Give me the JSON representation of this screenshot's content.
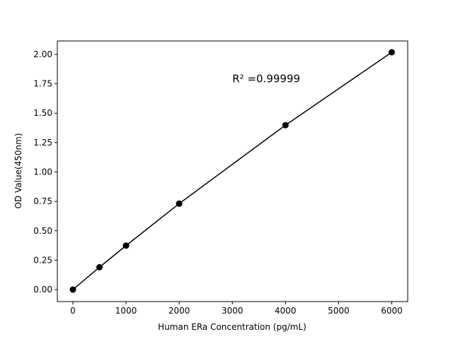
{
  "chart_data": {
    "type": "line",
    "title": "",
    "xlabel": "Human ERa Concentration (pg/mL)",
    "ylabel": "OD Value(450nm)",
    "xlim": [
      -293,
      6300
    ],
    "ylim": [
      -0.102,
      2.114
    ],
    "xticks": [
      0,
      1000,
      2000,
      3000,
      4000,
      5000,
      6000
    ],
    "xtick_labels": [
      "0",
      "1000",
      "2000",
      "3000",
      "4000",
      "5000",
      "6000"
    ],
    "yticks": [
      0,
      0.25,
      0.5,
      0.75,
      1.0,
      1.25,
      1.5,
      1.75,
      2.0
    ],
    "ytick_labels": [
      "0.00",
      "0.25",
      "0.50",
      "0.75",
      "1.00",
      "1.25",
      "1.50",
      "1.75",
      "2.00"
    ],
    "grid": false,
    "series": [
      {
        "x": [
          0,
          500,
          1000,
          2000,
          4000,
          6000
        ],
        "y": [
          0.0,
          0.19,
          0.374,
          0.731,
          1.398,
          2.018
        ],
        "color": "#000000",
        "marker": "circle"
      }
    ],
    "annotations": [
      {
        "text": "R² =0.99999",
        "x": 3000,
        "y": 1.8
      }
    ]
  }
}
